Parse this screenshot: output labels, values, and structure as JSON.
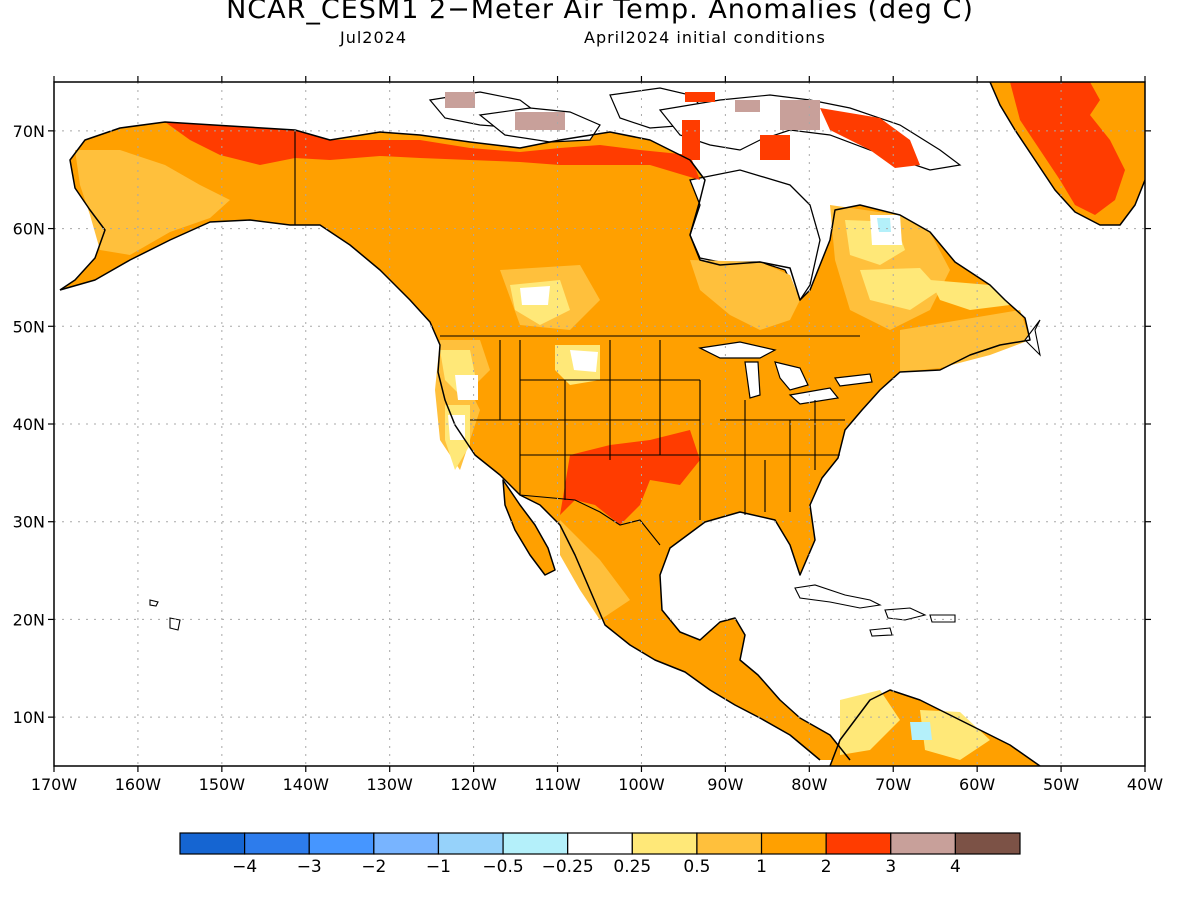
{
  "title": "NCAR_CESM1 2−Meter Air Temp. Anomalies (deg C)",
  "subtitle_left": "Jul2024",
  "subtitle_right": "April2024 initial conditions",
  "colors": {
    "water": "#ffffff",
    "coastline": "#000000",
    "grid": "#a8a8a8",
    "anom_0_25_to_0_5": "#ffe878",
    "anom_0_5_to_1": "#ffc03c",
    "anom_1_to_2": "#ffa000",
    "anom_2_to_3": "#ff3c00",
    "anom_3_to_4": "#c8a09a",
    "anom_near_zero": "#ffffff",
    "anom_neg_0_5": "#b4f0fa"
  },
  "chart_data": {
    "type": "heatmap",
    "title": "NCAR_CESM1 2−Meter Air Temp. Anomalies (deg C)",
    "lon_range": [
      -170,
      -40
    ],
    "lat_range": [
      5,
      75
    ],
    "x_ticks": [
      "170W",
      "160W",
      "150W",
      "140W",
      "130W",
      "120W",
      "110W",
      "100W",
      "90W",
      "80W",
      "70W",
      "60W",
      "50W",
      "40W"
    ],
    "x_tick_values": [
      -170,
      -160,
      -150,
      -140,
      -130,
      -120,
      -110,
      -100,
      -90,
      -80,
      -70,
      -60,
      -50,
      -40
    ],
    "y_ticks": [
      "10N",
      "20N",
      "30N",
      "40N",
      "50N",
      "60N",
      "70N"
    ],
    "y_tick_values": [
      10,
      20,
      30,
      40,
      50,
      60,
      70
    ],
    "grid": true,
    "colorbar": {
      "labels": [
        "−4",
        "−3",
        "−2",
        "−1",
        "−0.5",
        "−0.25",
        "0.25",
        "0.5",
        "1",
        "2",
        "3",
        "4"
      ],
      "colors": [
        "#1565d2",
        "#2d7cec",
        "#4696ff",
        "#78b4ff",
        "#96d2fa",
        "#b4f0fa",
        "#ffffff",
        "#ffe878",
        "#ffc03c",
        "#ffa000",
        "#ff3c00",
        "#c8a09a",
        "#7c5246"
      ]
    }
  }
}
